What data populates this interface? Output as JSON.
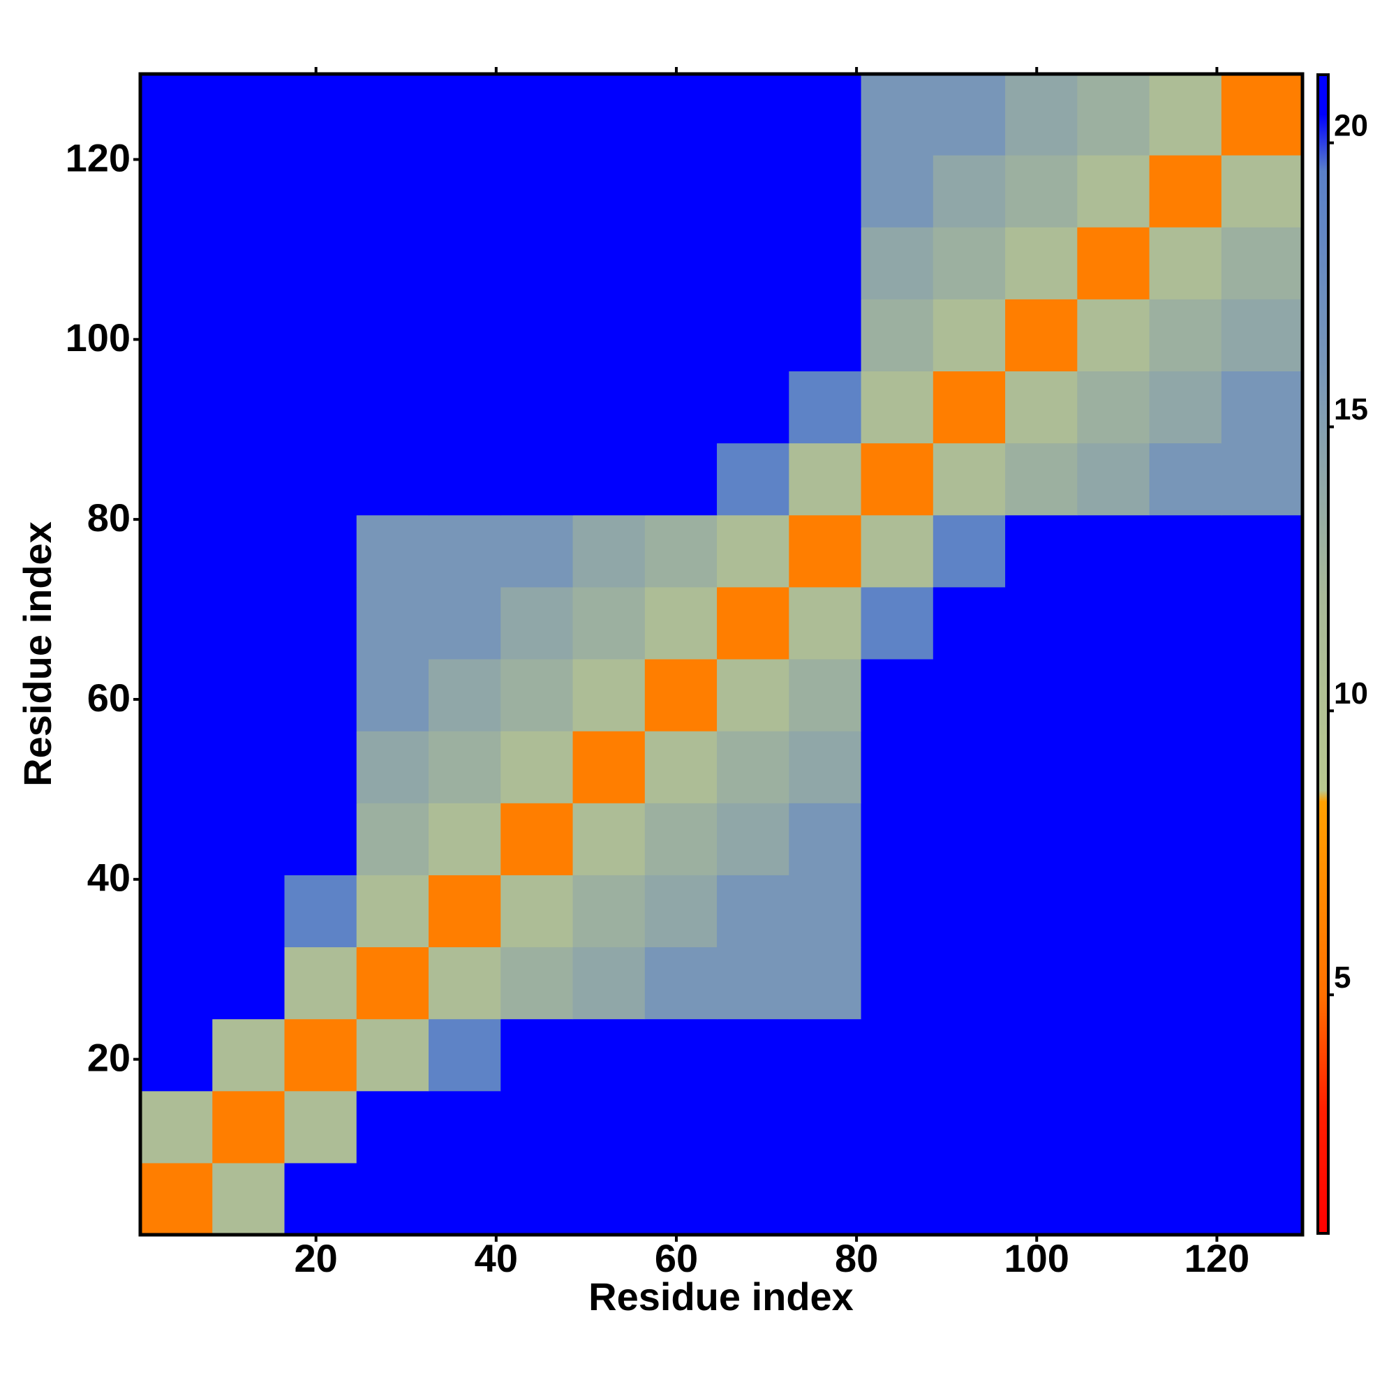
{
  "chart_data": {
    "type": "heatmap",
    "xlabel": "Residue index",
    "ylabel": "Residue index",
    "xbins": [
      0.5,
      8.5,
      16.5,
      24.5,
      32.5,
      40.5,
      48.5,
      56.5,
      64.5,
      72.5,
      80.5,
      88.5,
      96.5,
      104.5,
      112.5,
      120.5,
      129.5
    ],
    "ybins": [
      0.5,
      8.5,
      16.5,
      24.5,
      32.5,
      40.5,
      48.5,
      56.5,
      64.5,
      72.5,
      80.5,
      88.5,
      96.5,
      104.5,
      112.5,
      120.5,
      129.5
    ],
    "xlim": [
      0.5,
      129.5
    ],
    "ylim": [
      0.5,
      129.5
    ],
    "xticks": [
      20,
      40,
      60,
      80,
      100,
      120
    ],
    "yticks": [
      20,
      40,
      60,
      80,
      100,
      120
    ],
    "z": [
      [
        6,
        11,
        21,
        21,
        21,
        21,
        21,
        21,
        21,
        21,
        21,
        21,
        21,
        21,
        21,
        21
      ],
      [
        11,
        6,
        11,
        21,
        21,
        21,
        21,
        21,
        21,
        21,
        21,
        21,
        21,
        21,
        21,
        21
      ],
      [
        21,
        11,
        6,
        11,
        19,
        21,
        21,
        21,
        21,
        21,
        21,
        21,
        21,
        21,
        21,
        21
      ],
      [
        21,
        21,
        11,
        6,
        11,
        13,
        14,
        16,
        16,
        16,
        21,
        21,
        21,
        21,
        21,
        21
      ],
      [
        21,
        21,
        19,
        11,
        6,
        11,
        13,
        14,
        16,
        16,
        21,
        21,
        21,
        21,
        21,
        21
      ],
      [
        21,
        21,
        21,
        13,
        11,
        6,
        11,
        13,
        14,
        16,
        21,
        21,
        21,
        21,
        21,
        21
      ],
      [
        21,
        21,
        21,
        14,
        13,
        11,
        6,
        11,
        13,
        14,
        21,
        21,
        21,
        21,
        21,
        21
      ],
      [
        21,
        21,
        21,
        16,
        14,
        13,
        11,
        6,
        11,
        13,
        21,
        21,
        21,
        21,
        21,
        21
      ],
      [
        21,
        21,
        21,
        16,
        16,
        14,
        13,
        11,
        6,
        11,
        19,
        21,
        21,
        21,
        21,
        21
      ],
      [
        21,
        21,
        21,
        16,
        16,
        16,
        14,
        13,
        11,
        6,
        11,
        19,
        21,
        21,
        21,
        21
      ],
      [
        21,
        21,
        21,
        21,
        21,
        21,
        21,
        21,
        19,
        11,
        6,
        11,
        13,
        14,
        16,
        16
      ],
      [
        21,
        21,
        21,
        21,
        21,
        21,
        21,
        21,
        21,
        19,
        11,
        6,
        11,
        13,
        14,
        16
      ],
      [
        21,
        21,
        21,
        21,
        21,
        21,
        21,
        21,
        21,
        21,
        13,
        11,
        6,
        11,
        13,
        14
      ],
      [
        21,
        21,
        21,
        21,
        21,
        21,
        21,
        21,
        21,
        21,
        14,
        13,
        11,
        6,
        11,
        13
      ],
      [
        21,
        21,
        21,
        21,
        21,
        21,
        21,
        21,
        21,
        21,
        16,
        14,
        13,
        11,
        6,
        11
      ],
      [
        21,
        21,
        21,
        21,
        21,
        21,
        21,
        21,
        21,
        21,
        16,
        16,
        14,
        13,
        11,
        6
      ]
    ],
    "zlim": [
      0.8,
      21.2
    ],
    "zticks": [
      5,
      10,
      15,
      20
    ],
    "colorscale": [
      [
        0.8,
        "#ff0000"
      ],
      [
        3,
        "#ff2000"
      ],
      [
        5,
        "#ff7000"
      ],
      [
        8.4,
        "#ffa000"
      ],
      [
        8.6,
        "#b8c890"
      ],
      [
        12,
        "#a8b898"
      ],
      [
        16,
        "#7896b8"
      ],
      [
        19.5,
        "#5a80c8"
      ],
      [
        20.5,
        "#0000ff"
      ],
      [
        21.2,
        "#0000ff"
      ]
    ]
  }
}
